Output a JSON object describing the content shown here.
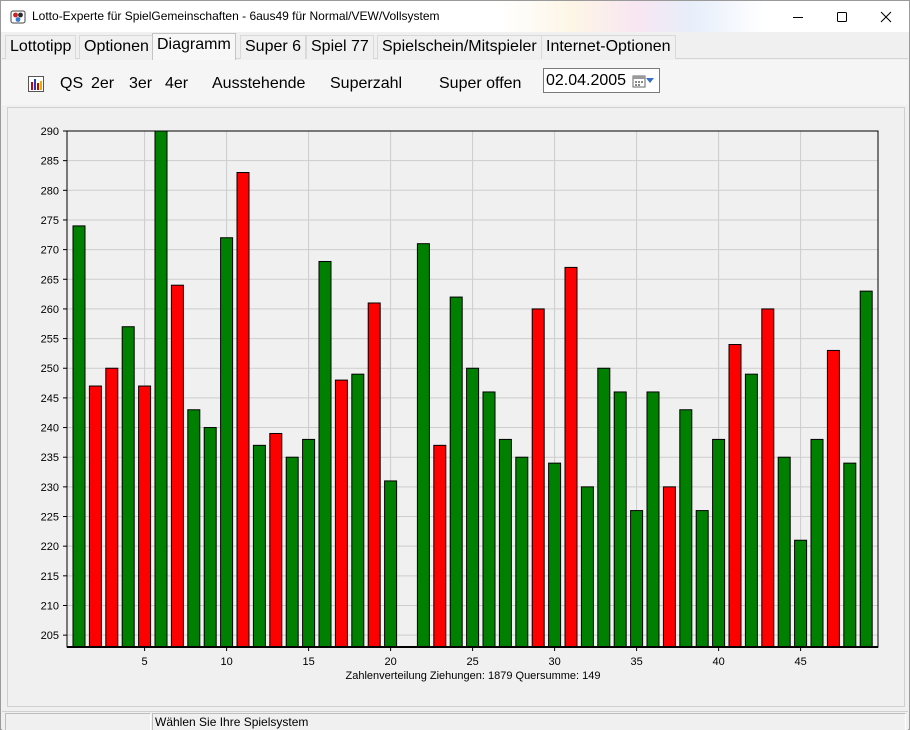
{
  "window": {
    "title": "Lotto-Experte für SpielGemeinschaften - 6aus49 für Normal/VEW/Vollsystem"
  },
  "menu": {
    "tabs": [
      {
        "label": "Lottotipp"
      },
      {
        "label": "Optionen"
      },
      {
        "label": "Diagramm"
      },
      {
        "label": "Super 6"
      },
      {
        "label": "Spiel 77"
      },
      {
        "label": "Spielschein/Mitspieler"
      },
      {
        "label": "Internet-Optionen"
      }
    ],
    "active_tab": "Diagramm"
  },
  "toolbar": {
    "qs": "QS",
    "zwei_er": "2er",
    "drei_er": "3er",
    "vier_er": "4er",
    "ausstehende": "Ausstehende",
    "superzahl": "Superzahl",
    "super_offen": "Super offen",
    "date": "02.04.2005"
  },
  "chart_data": {
    "type": "bar",
    "caption": "Zahlenverteilung    Ziehungen: 1879    Quersumme: 149",
    "ylim": [
      203,
      290
    ],
    "yticks": [
      205,
      210,
      215,
      220,
      225,
      230,
      235,
      240,
      245,
      250,
      255,
      260,
      265,
      270,
      275,
      280,
      285,
      290
    ],
    "xticks": [
      5,
      10,
      15,
      20,
      25,
      30,
      35,
      40,
      45
    ],
    "grid": true,
    "colors": {
      "green": "#008000",
      "red": "#ff0000"
    },
    "bars": [
      {
        "n": 1,
        "value": 274,
        "color": "green"
      },
      {
        "n": 2,
        "value": 247,
        "color": "red"
      },
      {
        "n": 3,
        "value": 250,
        "color": "red"
      },
      {
        "n": 4,
        "value": 257,
        "color": "green"
      },
      {
        "n": 5,
        "value": 247,
        "color": "red"
      },
      {
        "n": 6,
        "value": 290,
        "color": "green"
      },
      {
        "n": 7,
        "value": 264,
        "color": "red"
      },
      {
        "n": 8,
        "value": 243,
        "color": "green"
      },
      {
        "n": 9,
        "value": 240,
        "color": "green"
      },
      {
        "n": 10,
        "value": 272,
        "color": "green"
      },
      {
        "n": 11,
        "value": 283,
        "color": "red"
      },
      {
        "n": 12,
        "value": 237,
        "color": "green"
      },
      {
        "n": 13,
        "value": 239,
        "color": "red"
      },
      {
        "n": 14,
        "value": 235,
        "color": "green"
      },
      {
        "n": 15,
        "value": 238,
        "color": "green"
      },
      {
        "n": 16,
        "value": 268,
        "color": "green"
      },
      {
        "n": 17,
        "value": 248,
        "color": "red"
      },
      {
        "n": 18,
        "value": 249,
        "color": "green"
      },
      {
        "n": 19,
        "value": 261,
        "color": "red"
      },
      {
        "n": 20,
        "value": 231,
        "color": "green"
      },
      {
        "n": 21,
        "value": 203,
        "color": "green"
      },
      {
        "n": 22,
        "value": 271,
        "color": "green"
      },
      {
        "n": 23,
        "value": 237,
        "color": "red"
      },
      {
        "n": 24,
        "value": 262,
        "color": "green"
      },
      {
        "n": 25,
        "value": 250,
        "color": "green"
      },
      {
        "n": 26,
        "value": 246,
        "color": "green"
      },
      {
        "n": 27,
        "value": 238,
        "color": "green"
      },
      {
        "n": 28,
        "value": 235,
        "color": "green"
      },
      {
        "n": 29,
        "value": 260,
        "color": "red"
      },
      {
        "n": 30,
        "value": 234,
        "color": "green"
      },
      {
        "n": 31,
        "value": 267,
        "color": "red"
      },
      {
        "n": 32,
        "value": 230,
        "color": "green"
      },
      {
        "n": 33,
        "value": 250,
        "color": "green"
      },
      {
        "n": 34,
        "value": 246,
        "color": "green"
      },
      {
        "n": 35,
        "value": 226,
        "color": "green"
      },
      {
        "n": 36,
        "value": 246,
        "color": "green"
      },
      {
        "n": 37,
        "value": 230,
        "color": "red"
      },
      {
        "n": 38,
        "value": 243,
        "color": "green"
      },
      {
        "n": 39,
        "value": 226,
        "color": "green"
      },
      {
        "n": 40,
        "value": 238,
        "color": "green"
      },
      {
        "n": 41,
        "value": 254,
        "color": "red"
      },
      {
        "n": 42,
        "value": 249,
        "color": "green"
      },
      {
        "n": 43,
        "value": 260,
        "color": "red"
      },
      {
        "n": 44,
        "value": 235,
        "color": "green"
      },
      {
        "n": 45,
        "value": 221,
        "color": "green"
      },
      {
        "n": 46,
        "value": 238,
        "color": "green"
      },
      {
        "n": 47,
        "value": 253,
        "color": "red"
      },
      {
        "n": 48,
        "value": 234,
        "color": "green"
      },
      {
        "n": 49,
        "value": 263,
        "color": "green"
      }
    ]
  },
  "status": {
    "message": "Wählen Sie Ihre Spielsystem"
  },
  "icons": {
    "app": "clover-app-icon",
    "chart_toggle": "bar-chart-icon",
    "calendar": "calendar-icon"
  }
}
